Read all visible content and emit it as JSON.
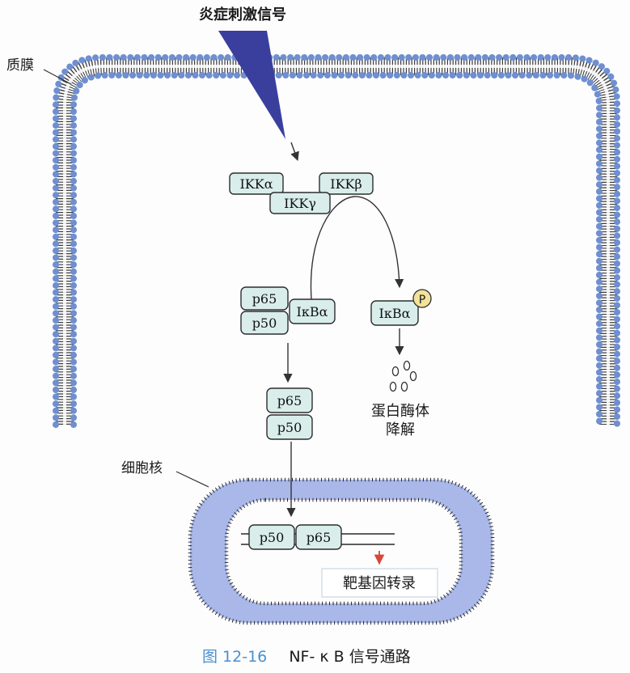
{
  "labels": {
    "stimulus": "炎症刺激信号",
    "plasma_membrane": "质膜",
    "nucleus": "细胞核",
    "degradation_line1": "蛋白酶体",
    "degradation_line2": "降解",
    "transcription": "靶基因转录"
  },
  "proteins": {
    "ikk_alpha": "IKKα",
    "ikk_beta": "IKKβ",
    "ikk_gamma": "IKKγ",
    "p65_cyto": "p65",
    "p50_cyto": "p50",
    "ikba_bound": "IκBα",
    "ikba_free": "IκBα",
    "phospho": "P",
    "p65_mid": "p65",
    "p50_mid": "p50",
    "p50_nuc": "p50",
    "p65_nuc": "p65"
  },
  "caption": {
    "number": "图 12-16",
    "title": "NF- κ B 信号通路"
  },
  "colors": {
    "membrane_head": "#6f8fd0",
    "nucleus_fill": "#a9b8e8",
    "stimulus_wedge": "#3a3f9e",
    "box_fill": "#d9eeeb",
    "phospho_fill": "#f2e29a",
    "transcription_arrow": "#d9463a"
  }
}
